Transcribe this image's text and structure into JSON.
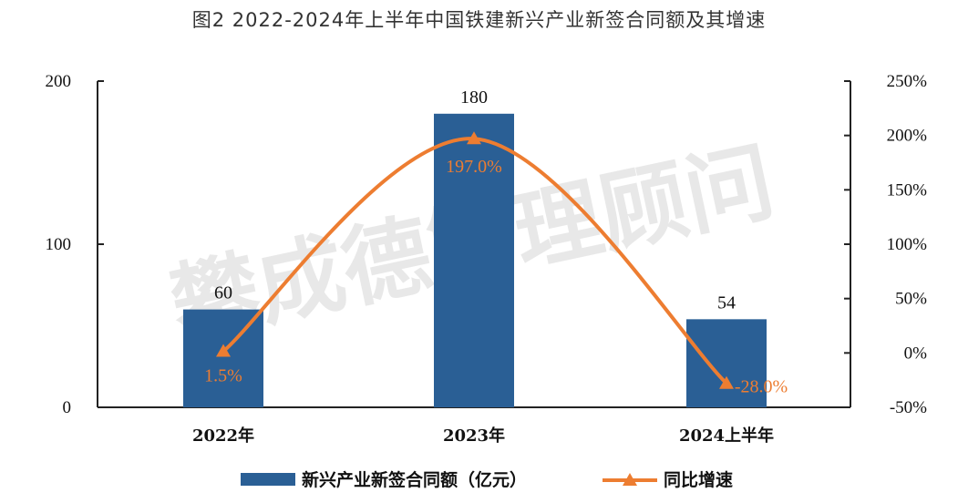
{
  "chart_data": {
    "type": "bar+line",
    "title": "图2 2022-2024年上半年中国铁建新兴产业新签合同额及其增速",
    "categories": [
      "2022年",
      "2023年",
      "2024上半年"
    ],
    "series": [
      {
        "name": "新兴产业新签合同额（亿元）",
        "type": "bar",
        "axis": "left",
        "values": [
          60,
          180,
          54
        ],
        "labels": [
          "60",
          "180",
          "54"
        ]
      },
      {
        "name": "同比增速",
        "type": "line",
        "axis": "right",
        "values": [
          1.5,
          197.0,
          -28.0
        ],
        "labels": [
          "1.5%",
          "197.0%",
          "-28.0%"
        ]
      }
    ],
    "y_left": {
      "ylim": [
        0,
        200
      ],
      "ticks": [
        "0",
        "100",
        "200"
      ]
    },
    "y_right": {
      "ylim": [
        -50,
        250
      ],
      "ticks": [
        "-50%",
        "0%",
        "50%",
        "100%",
        "150%",
        "200%",
        "250%"
      ]
    },
    "legend_position": "bottom",
    "grid": false,
    "colors": {
      "bar": "#2a5f95",
      "line": "#ed7d31",
      "line_label": "#ed7d31"
    }
  },
  "watermark": "攀成德管理顾问"
}
